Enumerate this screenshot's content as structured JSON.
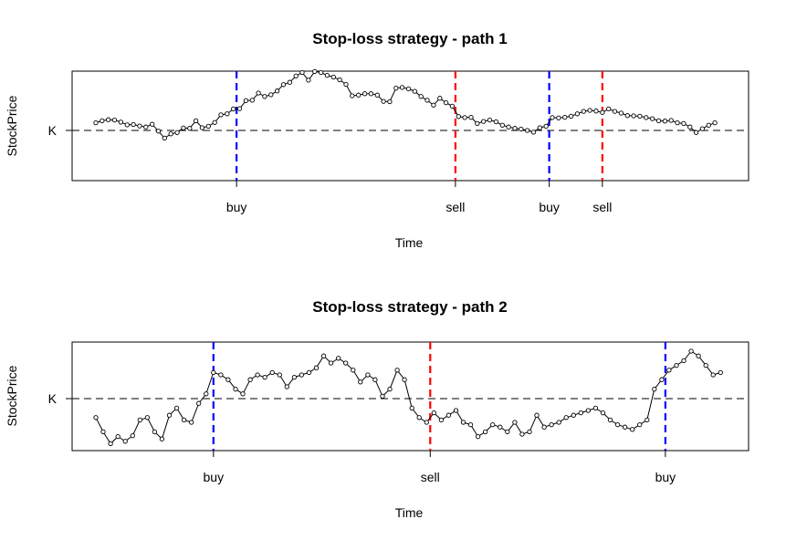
{
  "chart_data": [
    {
      "type": "line",
      "title": "Stop-loss strategy - path 1",
      "xlabel": "Time",
      "ylabel": "StockPrice",
      "strike_label": "K",
      "series": [
        {
          "values": [
            0.22,
            0.28,
            0.31,
            0.3,
            0.24,
            0.16,
            0.17,
            0.13,
            0.1,
            0.18,
            -0.02,
            -0.22,
            -0.1,
            -0.06,
            0.07,
            0.06,
            0.28,
            0.08,
            0.12,
            0.23,
            0.45,
            0.48,
            0.62,
            0.63,
            0.86,
            0.87,
            1.08,
            0.98,
            1.03,
            1.14,
            1.32,
            1.39,
            1.57,
            1.67,
            1.45,
            1.7,
            1.67,
            1.59,
            1.54,
            1.46,
            1.33,
            1.0,
            1.02,
            1.06,
            1.06,
            1.02,
            0.84,
            0.83,
            1.22,
            1.24,
            1.2,
            1.13,
            0.98,
            0.87,
            0.73,
            0.93,
            0.8,
            0.7,
            0.4,
            0.37,
            0.38,
            0.2,
            0.26,
            0.3,
            0.25,
            0.15,
            0.1,
            0.06,
            0.04,
            0.0,
            -0.05,
            0.08,
            0.12,
            0.37,
            0.36,
            0.38,
            0.41,
            0.48,
            0.55,
            0.58,
            0.56,
            0.52,
            0.62,
            0.55,
            0.5,
            0.43,
            0.42,
            0.41,
            0.37,
            0.34,
            0.28,
            0.27,
            0.29,
            0.22,
            0.2,
            0.1,
            -0.06,
            0.05,
            0.15,
            0.22
          ]
        }
      ],
      "events": [
        {
          "label": "buy",
          "x": 22.5,
          "color": "#0000ff"
        },
        {
          "label": "sell",
          "x": 57.5,
          "color": "#ff0000"
        },
        {
          "label": "buy",
          "x": 72.5,
          "color": "#0000ff"
        },
        {
          "label": "sell",
          "x": 81.0,
          "color": "#ff0000"
        }
      ]
    },
    {
      "type": "line",
      "title": "Stop-loss strategy - path 2",
      "xlabel": "Time",
      "ylabel": "StockPrice",
      "strike_label": "K",
      "series": [
        {
          "values": [
            -0.4,
            -0.7,
            -0.95,
            -0.8,
            -0.9,
            -0.78,
            -0.45,
            -0.4,
            -0.7,
            -0.85,
            -0.35,
            -0.2,
            -0.45,
            -0.5,
            -0.1,
            0.1,
            0.55,
            0.5,
            0.4,
            0.2,
            0.1,
            0.4,
            0.5,
            0.45,
            0.55,
            0.5,
            0.25,
            0.45,
            0.5,
            0.55,
            0.65,
            0.9,
            0.75,
            0.85,
            0.75,
            0.6,
            0.35,
            0.5,
            0.4,
            0.05,
            0.2,
            0.6,
            0.4,
            -0.2,
            -0.4,
            -0.5,
            -0.3,
            -0.45,
            -0.35,
            -0.25,
            -0.5,
            -0.55,
            -0.8,
            -0.7,
            -0.55,
            -0.6,
            -0.7,
            -0.5,
            -0.75,
            -0.7,
            -0.35,
            -0.6,
            -0.55,
            -0.5,
            -0.4,
            -0.35,
            -0.3,
            -0.25,
            -0.2,
            -0.3,
            -0.45,
            -0.55,
            -0.6,
            -0.65,
            -0.55,
            -0.45,
            0.2,
            0.4,
            0.6,
            0.7,
            0.8,
            1.0,
            0.9,
            0.7,
            0.5,
            0.55
          ]
        }
      ],
      "events": [
        {
          "label": "buy",
          "x": 16.0,
          "color": "#0000ff"
        },
        {
          "label": "sell",
          "x": 45.5,
          "color": "#ff0000"
        },
        {
          "label": "buy",
          "x": 77.5,
          "color": "#0000ff"
        }
      ]
    }
  ]
}
